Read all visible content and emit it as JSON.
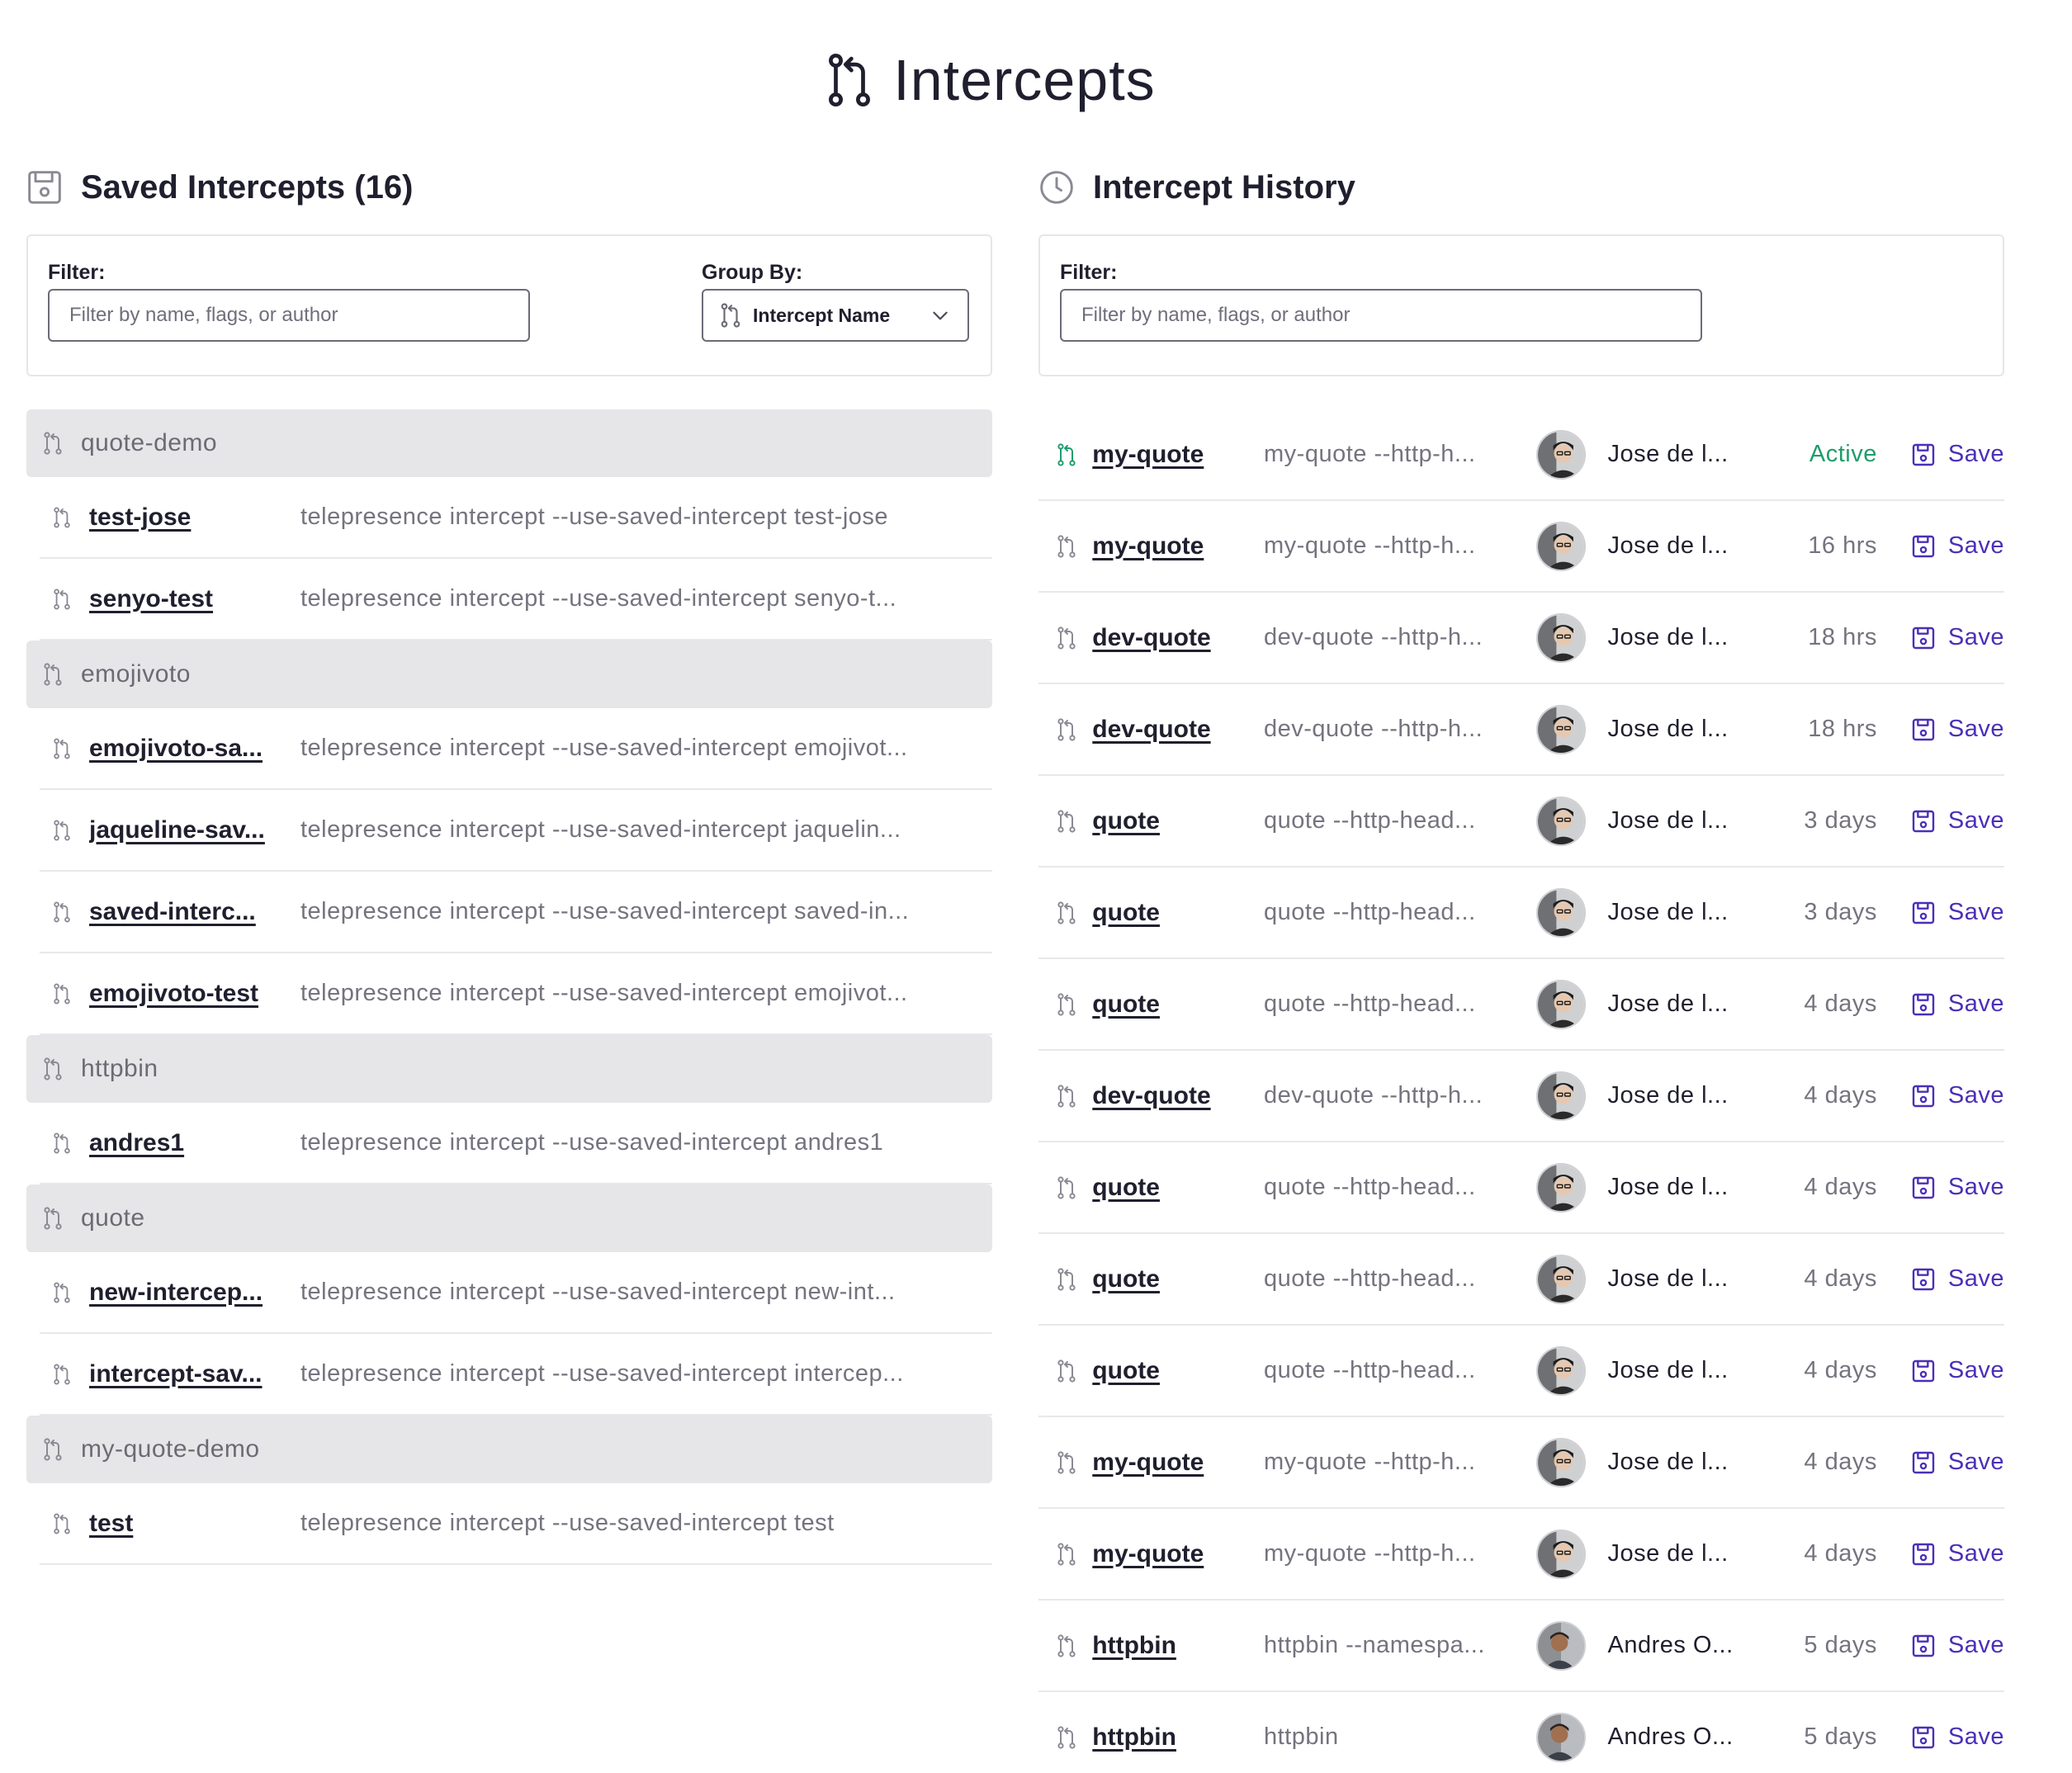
{
  "page": {
    "title": "Intercepts",
    "title_icon": "git-pull-request-icon"
  },
  "saved": {
    "title": "Saved Intercepts (16)",
    "icon": "save-icon",
    "filter_label": "Filter:",
    "filter_placeholder": "Filter by name, flags, or author",
    "group_by_label": "Group By:",
    "group_by_value": "Intercept Name",
    "groups": [
      {
        "name": "quote-demo",
        "items": [
          {
            "name": "test-jose",
            "command": "telepresence intercept --use-saved-intercept test-jose"
          },
          {
            "name": "senyo-test",
            "command": "telepresence intercept --use-saved-intercept senyo-t..."
          }
        ]
      },
      {
        "name": "emojivoto",
        "items": [
          {
            "name": "emojivoto-sa...",
            "command": "telepresence intercept --use-saved-intercept emojivot..."
          },
          {
            "name": "jaqueline-sav...",
            "command": "telepresence intercept --use-saved-intercept jaquelin..."
          },
          {
            "name": "saved-interc...",
            "command": "telepresence intercept --use-saved-intercept saved-in..."
          },
          {
            "name": "emojivoto-test",
            "command": "telepresence intercept --use-saved-intercept emojivot..."
          }
        ]
      },
      {
        "name": "httpbin",
        "items": [
          {
            "name": "andres1",
            "command": "telepresence intercept --use-saved-intercept andres1"
          }
        ]
      },
      {
        "name": "quote",
        "items": [
          {
            "name": "new-intercep...",
            "command": "telepresence intercept --use-saved-intercept new-int..."
          },
          {
            "name": "intercept-sav...",
            "command": "telepresence intercept --use-saved-intercept intercep..."
          }
        ]
      },
      {
        "name": "my-quote-demo",
        "items": [
          {
            "name": "test",
            "command": "telepresence intercept --use-saved-intercept test"
          }
        ]
      }
    ]
  },
  "history": {
    "title": "Intercept History",
    "icon": "clock-icon",
    "filter_label": "Filter:",
    "filter_placeholder": "Filter by name, flags, or author",
    "save_label": "Save",
    "active_color": "#1f9d6b",
    "save_color": "#4b2fb8",
    "rows": [
      {
        "name": "my-quote",
        "command": "my-quote --http-h...",
        "author": "Jose de l...",
        "status": "Active",
        "active": true,
        "avatar": "jose"
      },
      {
        "name": "my-quote",
        "command": "my-quote --http-h...",
        "author": "Jose de l...",
        "status": "16 hrs",
        "avatar": "jose"
      },
      {
        "name": "dev-quote",
        "command": "dev-quote --http-h...",
        "author": "Jose de l...",
        "status": "18 hrs",
        "avatar": "jose"
      },
      {
        "name": "dev-quote",
        "command": "dev-quote --http-h...",
        "author": "Jose de l...",
        "status": "18 hrs",
        "avatar": "jose"
      },
      {
        "name": "quote",
        "command": "quote --http-head...",
        "author": "Jose de l...",
        "status": "3 days",
        "avatar": "jose"
      },
      {
        "name": "quote",
        "command": "quote --http-head...",
        "author": "Jose de l...",
        "status": "3 days",
        "avatar": "jose"
      },
      {
        "name": "quote",
        "command": "quote --http-head...",
        "author": "Jose de l...",
        "status": "4 days",
        "avatar": "jose"
      },
      {
        "name": "dev-quote",
        "command": "dev-quote --http-h...",
        "author": "Jose de l...",
        "status": "4 days",
        "avatar": "jose"
      },
      {
        "name": "quote",
        "command": "quote --http-head...",
        "author": "Jose de l...",
        "status": "4 days",
        "avatar": "jose"
      },
      {
        "name": "quote",
        "command": "quote --http-head...",
        "author": "Jose de l...",
        "status": "4 days",
        "avatar": "jose"
      },
      {
        "name": "quote",
        "command": "quote --http-head...",
        "author": "Jose de l...",
        "status": "4 days",
        "avatar": "jose"
      },
      {
        "name": "my-quote",
        "command": "my-quote --http-h...",
        "author": "Jose de l...",
        "status": "4 days",
        "avatar": "jose"
      },
      {
        "name": "my-quote",
        "command": "my-quote --http-h...",
        "author": "Jose de l...",
        "status": "4 days",
        "avatar": "jose"
      },
      {
        "name": "httpbin",
        "command": "httpbin --namespa...",
        "author": "Andres O...",
        "status": "5 days",
        "avatar": "andres"
      },
      {
        "name": "httpbin",
        "command": "httpbin",
        "author": "Andres O...",
        "status": "5 days",
        "avatar": "andres"
      }
    ]
  }
}
